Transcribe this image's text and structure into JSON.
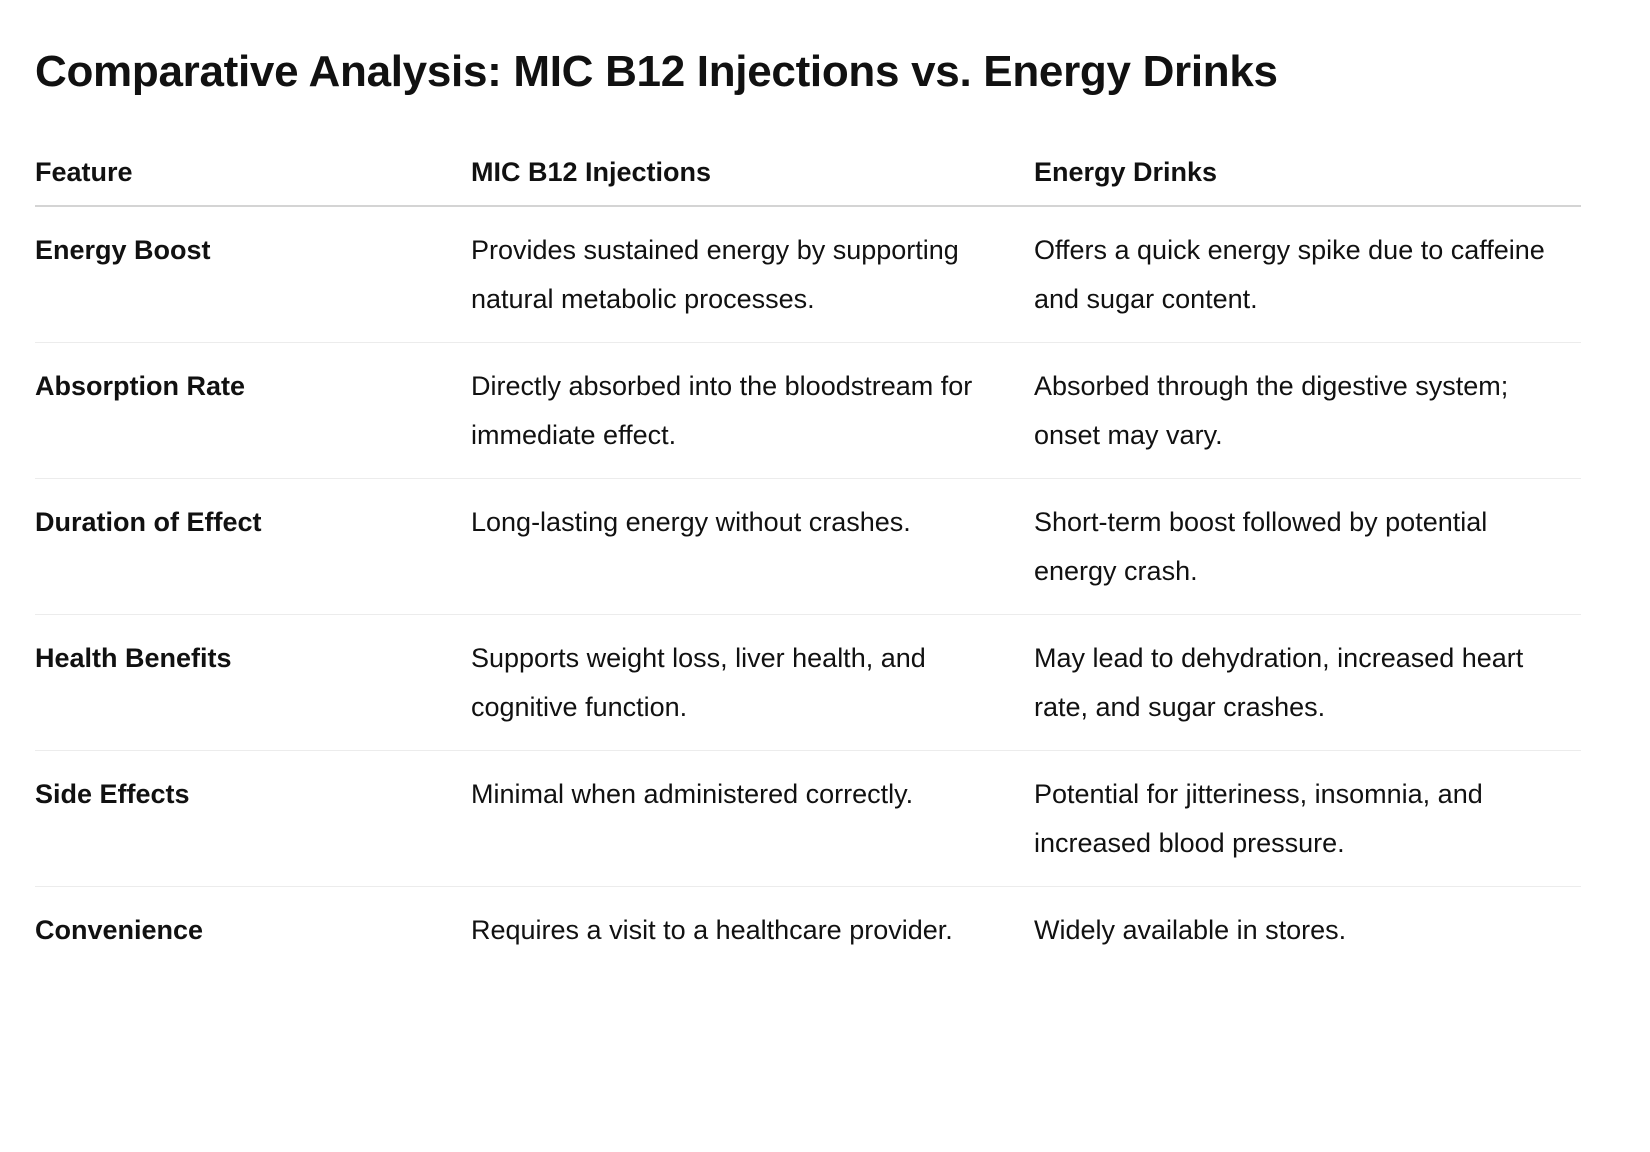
{
  "title": "Comparative Analysis: MIC B12 Injections vs. Energy Drinks",
  "table": {
    "headers": [
      "Feature",
      "MIC B12 Injections",
      "Energy Drinks"
    ],
    "rows": [
      {
        "feature": "Energy Boost",
        "mic_b12": "Provides sustained energy by supporting natural metabolic processes.",
        "energy_drinks": "Offers a quick energy spike due to caffeine and sugar content."
      },
      {
        "feature": "Absorption Rate",
        "mic_b12": "Directly absorbed into the bloodstream for immediate effect.",
        "energy_drinks": "Absorbed through the digestive system; onset may vary."
      },
      {
        "feature": "Duration of Effect",
        "mic_b12": "Long-lasting energy without crashes.",
        "energy_drinks": "Short-term boost followed by potential energy crash."
      },
      {
        "feature": "Health Benefits",
        "mic_b12": "Supports weight loss, liver health, and cognitive function.",
        "energy_drinks": "May lead to dehydration, increased heart rate, and sugar crashes."
      },
      {
        "feature": "Side Effects",
        "mic_b12": "Minimal when administered correctly.",
        "energy_drinks": "Potential for jitteriness, insomnia, and increased blood pressure."
      },
      {
        "feature": "Convenience",
        "mic_b12": "Requires a visit to a healthcare provider.",
        "energy_drinks": "Widely available in stores."
      }
    ]
  }
}
